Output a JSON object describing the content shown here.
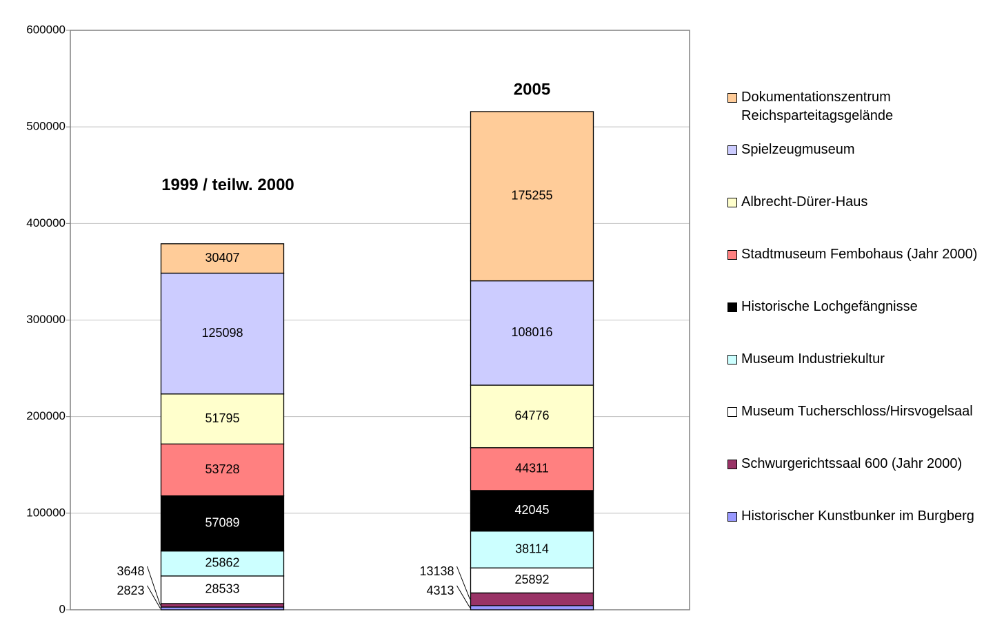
{
  "chart_data": {
    "type": "stacked_bar",
    "categories": [
      "1999 / teilw. 2000",
      "2005"
    ],
    "ylim": [
      0,
      600000
    ],
    "yticks": [
      0,
      100000,
      200000,
      300000,
      400000,
      500000,
      600000
    ],
    "grid": true,
    "legend": "right",
    "series": [
      {
        "name": "Historischer Kunstbunker im Burgberg",
        "color": "#9999ff",
        "values": [
          2823,
          4313
        ]
      },
      {
        "name": "Schwurgerichtssaal 600  (Jahr 2000)",
        "color": "#993366",
        "values": [
          3648,
          13138
        ]
      },
      {
        "name": "Museum Tucherschloss/Hirsvogelsaal",
        "color": "#ffffff",
        "values": [
          28533,
          25892
        ]
      },
      {
        "name": "Museum Industriekultur",
        "color": "#ccffff",
        "values": [
          25862,
          38114
        ]
      },
      {
        "name": "Historische Lochgefängnisse",
        "color": "#000000",
        "values": [
          57089,
          42045
        ]
      },
      {
        "name": "Stadtmuseum Fembohaus (Jahr 2000)",
        "color": "#ff8080",
        "values": [
          53728,
          44311
        ]
      },
      {
        "name": "Albrecht-Dürer-Haus",
        "color": "#ffffcc",
        "values": [
          51795,
          64776
        ]
      },
      {
        "name": "Spielzeugmuseum",
        "color": "#ccccff",
        "values": [
          125098,
          108016
        ]
      },
      {
        "name": "Dokumentationszentrum Reichsparteitagsgelände",
        "color": "#ffcc99",
        "values": [
          30407,
          175255
        ]
      }
    ]
  }
}
